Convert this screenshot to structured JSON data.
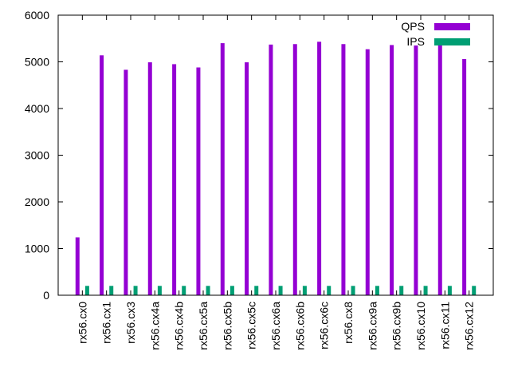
{
  "chart_data": {
    "type": "bar",
    "title": "",
    "xlabel": "",
    "ylabel": "",
    "ylim": [
      0,
      6000
    ],
    "yticks": [
      0,
      1000,
      2000,
      3000,
      4000,
      5000,
      6000
    ],
    "grid": false,
    "legend_position": "top-right",
    "categories": [
      "rx56.cx0",
      "rx56.cx1",
      "rx56.cx3",
      "rx56.cx4a",
      "rx56.cx4b",
      "rx56.cx5a",
      "rx56.cx5b",
      "rx56.cx5c",
      "rx56.cx6a",
      "rx56.cx6b",
      "rx56.cx6c",
      "rx56.cx8",
      "rx56.cx9a",
      "rx56.cx9b",
      "rx56.cx10",
      "rx56.cx11",
      "rx56.cx12"
    ],
    "series": [
      {
        "name": "QPS",
        "color": "#9400d3",
        "values": [
          1240,
          5140,
          4830,
          4990,
          4950,
          4880,
          5400,
          4990,
          5370,
          5380,
          5430,
          5380,
          5270,
          5360,
          5350,
          5450,
          5060
        ]
      },
      {
        "name": "IPS",
        "color": "#009e73",
        "values": [
          200,
          200,
          200,
          200,
          200,
          200,
          200,
          200,
          200,
          200,
          200,
          200,
          200,
          200,
          200,
          200,
          200
        ]
      }
    ]
  }
}
